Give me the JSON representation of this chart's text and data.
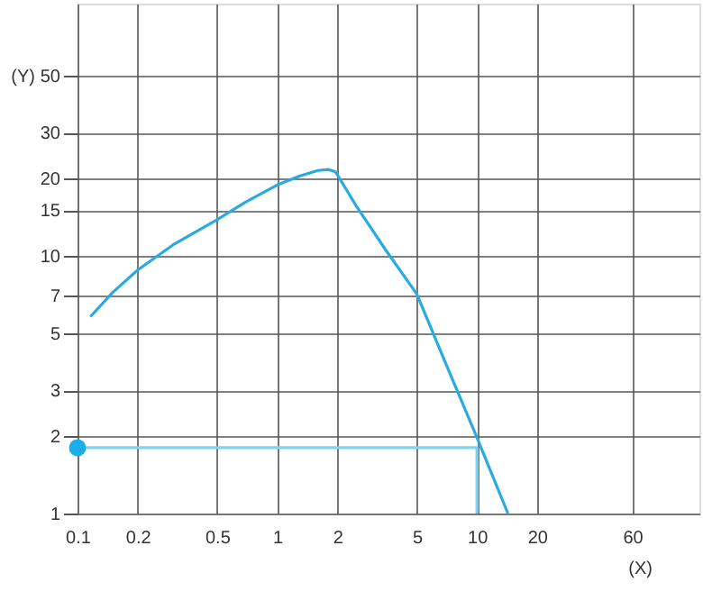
{
  "chart_data": {
    "type": "line",
    "xlabel": "(X)",
    "ylabel": "(Y)",
    "log": "xy",
    "xlim": [
      0.1,
      130
    ],
    "ylim": [
      1,
      95
    ],
    "xticks": [
      0.1,
      0.2,
      0.5,
      1,
      2,
      5,
      10,
      20,
      60
    ],
    "yticks": [
      1,
      2,
      3,
      5,
      7,
      10,
      15,
      20,
      30,
      50
    ],
    "grid": true,
    "series": [
      {
        "color": "#29abe2",
        "marker": "none",
        "x": [
          0.116,
          0.15,
          0.2,
          0.3,
          0.5,
          0.7,
          1,
          1.3,
          1.6,
          1.8,
          1.95,
          2,
          2.5,
          3.5,
          5,
          7,
          10,
          14.3
        ],
        "values": [
          5.8,
          7.2,
          8.8,
          11,
          13.8,
          16.2,
          18.8,
          20.4,
          21.4,
          21.6,
          21.2,
          20.6,
          15.5,
          10.5,
          7.1,
          3.8,
          1.97,
          1
        ]
      },
      {
        "type": "line",
        "color": "#7fd3f2",
        "marker": "none",
        "x": [
          0.1,
          10,
          10
        ],
        "values": [
          1.8,
          1.8,
          1
        ]
      },
      {
        "type": "scatter",
        "color": "#1aaeea",
        "marker": "circle",
        "x": [
          0.1
        ],
        "values": [
          1.8
        ]
      }
    ]
  }
}
